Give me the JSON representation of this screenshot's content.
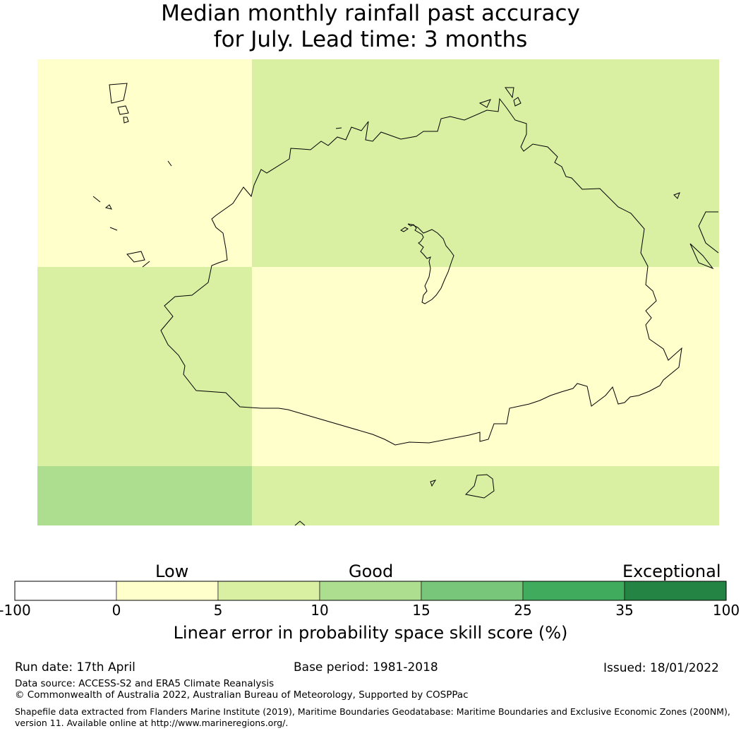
{
  "title": {
    "line1": "Median monthly rainfall past accuracy",
    "line2": "for July. Lead time: 3 months"
  },
  "map": {
    "grid_cells": [
      {
        "row": 0,
        "col": 0,
        "category": "0-5"
      },
      {
        "row": 0,
        "col": 1,
        "category": "5-10"
      },
      {
        "row": 1,
        "col": 0,
        "category": "5-10"
      },
      {
        "row": 1,
        "col": 1,
        "category": "0-5"
      },
      {
        "row": 2,
        "col": 0,
        "category": "10-15"
      },
      {
        "row": 2,
        "col": 1,
        "category": "5-10"
      }
    ],
    "category_colors": {
      "-100-0": "#ffffff",
      "0-5": "#ffffcc",
      "5-10": "#d9f0a3",
      "10-15": "#addd8e",
      "15-25": "#78c679",
      "25-35": "#41ab5d",
      "35-100": "#238443"
    }
  },
  "colorbar": {
    "category_labels": {
      "low": "Low",
      "good": "Good",
      "exceptional": "Exceptional"
    },
    "ticks": [
      "-100",
      "0",
      "5",
      "10",
      "15",
      "25",
      "35",
      "100"
    ],
    "colors": [
      "#ffffff",
      "#ffffcc",
      "#d9f0a3",
      "#addd8e",
      "#78c679",
      "#41ab5d",
      "#238443"
    ],
    "label": "Linear error in probability space skill score (%)"
  },
  "footer": {
    "run_date": "Run date: 17th April",
    "base_period": "Base period: 1981-2018",
    "issued": "Issued: 18/01/2022",
    "data_source": "Data source: ACCESS-S2 and ERA5 Climate Reanalysis",
    "copyright": "© Commonwealth of Australia 2022, Australian Bureau of Meteorology, Supported by COSPPac",
    "shapefile": "Shapefile data extracted from Flanders Marine Institute (2019), Maritime Boundaries Geodatabase: Maritime Boundaries and Exclusive Economic Zones (200NM), version 11. Available online at http://www.marineregions.org/."
  }
}
